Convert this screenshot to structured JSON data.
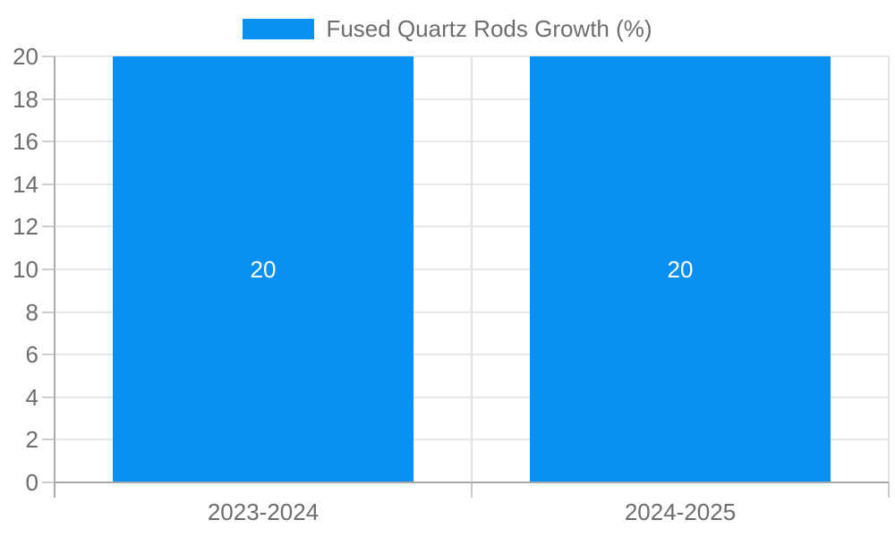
{
  "chart_data": {
    "type": "bar",
    "categories": [
      "2023-2024",
      "2024-2025"
    ],
    "series": [
      {
        "name": "Fused Quartz Rods Growth (%)",
        "values": [
          20,
          20
        ]
      }
    ],
    "data_labels": [
      "20",
      "20"
    ],
    "title": "",
    "xlabel": "",
    "ylabel": "",
    "ylim": [
      0,
      20
    ],
    "yticks": [
      0,
      2,
      4,
      6,
      8,
      10,
      12,
      14,
      16,
      18,
      20
    ],
    "grid": true,
    "legend_position": "top"
  },
  "colors": {
    "bar": "#0a90f2",
    "label_text": "#6d6d6d",
    "value_text": "#ffffff",
    "gridline": "#e7e7e7",
    "left_tick": "#cfcfcf",
    "boundary_line": "#e3e3e3",
    "below_axis_tick": "#c9c9c9",
    "axis_line": "#a9a9a9",
    "background": "#ffffff"
  }
}
